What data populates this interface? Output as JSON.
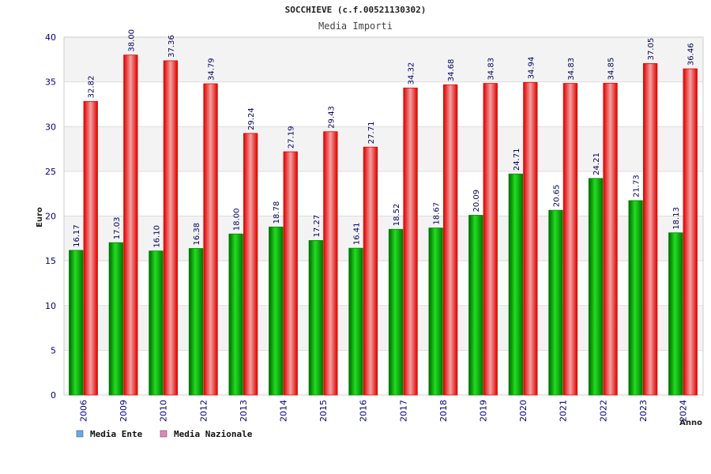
{
  "chart_data": {
    "type": "bar",
    "title": "SOCCHIEVE (c.f.00521130302)",
    "subtitle": "Media Importi",
    "xlabel": "Anno",
    "ylabel": "Euro",
    "ylim": [
      0,
      40
    ],
    "yticks": [
      "0",
      "5",
      "10",
      "15",
      "20",
      "25",
      "30",
      "35",
      "40"
    ],
    "categories": [
      "2006",
      "2009",
      "2010",
      "2012",
      "2013",
      "2014",
      "2015",
      "2016",
      "2017",
      "2018",
      "2019",
      "2020",
      "2021",
      "2022",
      "2023",
      "2024"
    ],
    "series": [
      {
        "name": "Media Ente",
        "color": "#00aa00",
        "legend_color": "#66aaee",
        "values": [
          16.17,
          17.03,
          16.1,
          16.38,
          18.0,
          18.78,
          17.27,
          16.41,
          18.52,
          18.67,
          20.09,
          24.71,
          20.65,
          24.21,
          21.73,
          18.13
        ],
        "labels": [
          "16.17",
          "17.03",
          "16.10",
          "16.38",
          "18.00",
          "18.78",
          "17.27",
          "16.41",
          "18.52",
          "18.67",
          "20.09",
          "24.71",
          "20.65",
          "24.21",
          "21.73",
          "18.13"
        ]
      },
      {
        "name": "Media Nazionale",
        "color": "#ee1111",
        "legend_color": "#dd88bb",
        "values": [
          32.82,
          38.0,
          37.36,
          34.79,
          29.24,
          27.19,
          29.43,
          27.71,
          34.32,
          34.68,
          34.83,
          34.94,
          34.83,
          34.85,
          37.05,
          36.46
        ],
        "labels": [
          "32.82",
          "38.00",
          "37.36",
          "34.79",
          "29.24",
          "27.19",
          "29.43",
          "27.71",
          "34.32",
          "34.68",
          "34.83",
          "34.94",
          "34.83",
          "34.85",
          "37.05",
          "36.46"
        ]
      }
    ],
    "grid": true,
    "legend": "bottom-left"
  }
}
